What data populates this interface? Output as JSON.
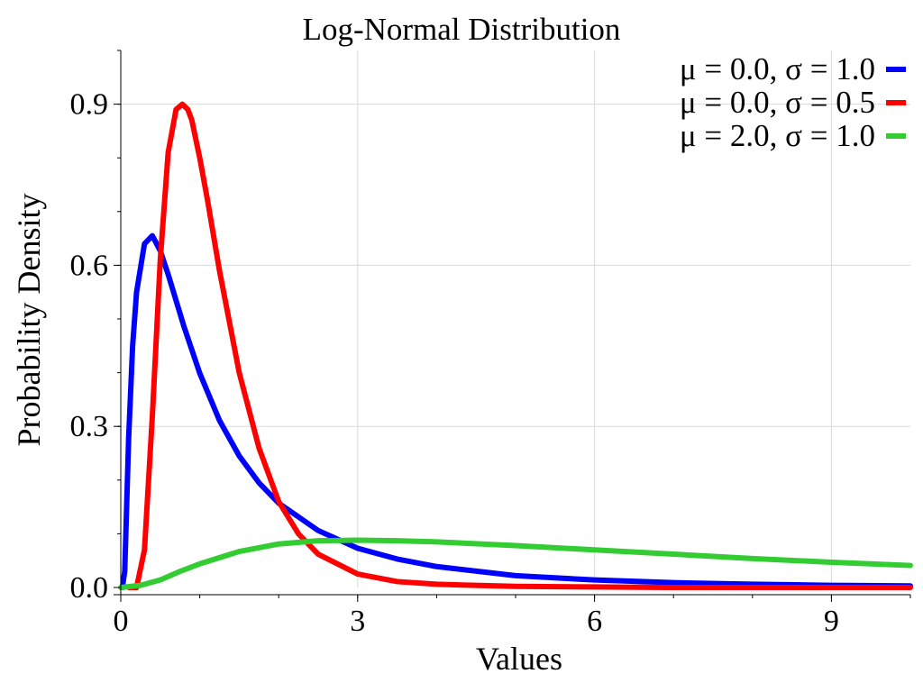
{
  "chart_data": {
    "type": "line",
    "title": "Log-Normal Distribution",
    "xlabel": "Values",
    "ylabel": "Probability Density",
    "xlim": [
      0,
      10
    ],
    "ylim": [
      0,
      1.0
    ],
    "xticks": [
      0,
      3,
      6,
      9
    ],
    "xtick_labels": [
      "0",
      "3",
      "6",
      "9"
    ],
    "yticks": [
      0.0,
      0.3,
      0.6,
      0.9
    ],
    "ytick_labels": [
      "0.0",
      "0.3",
      "0.6",
      "0.9"
    ],
    "grid": true,
    "legend_position": "top-right",
    "series": [
      {
        "name": "μ = 0.0, σ = 1.0",
        "color": "#0000ff",
        "x": [
          0.02,
          0.05,
          0.1,
          0.15,
          0.2,
          0.3,
          0.4,
          0.5,
          0.6,
          0.8,
          1.0,
          1.25,
          1.5,
          1.75,
          2.0,
          2.5,
          3.0,
          3.5,
          4.0,
          5.0,
          6.0,
          7.0,
          8.0,
          9.0,
          10.0
        ],
        "y": [
          0.0,
          0.03,
          0.28,
          0.45,
          0.55,
          0.64,
          0.655,
          0.627,
          0.583,
          0.486,
          0.399,
          0.311,
          0.245,
          0.195,
          0.157,
          0.106,
          0.073,
          0.053,
          0.039,
          0.022,
          0.014,
          0.009,
          0.006,
          0.004,
          0.003
        ]
      },
      {
        "name": "μ = 0.0, σ = 0.5",
        "color": "#ff0000",
        "x": [
          0.1,
          0.2,
          0.3,
          0.4,
          0.5,
          0.6,
          0.7,
          0.78,
          0.85,
          0.9,
          1.0,
          1.1,
          1.25,
          1.5,
          1.75,
          2.0,
          2.25,
          2.5,
          3.0,
          3.5,
          4.0,
          5.0,
          6.0,
          7.0,
          8.0,
          10.0
        ],
        "y": [
          0.0,
          0.0,
          0.07,
          0.32,
          0.61,
          0.81,
          0.89,
          0.9,
          0.89,
          0.87,
          0.8,
          0.72,
          0.59,
          0.4,
          0.26,
          0.16,
          0.1,
          0.062,
          0.025,
          0.011,
          0.006,
          0.002,
          0.001,
          0.0,
          0.0,
          0.0
        ]
      },
      {
        "name": "μ = 2.0, σ = 1.0",
        "color": "#33cc33",
        "x": [
          0.0,
          0.25,
          0.5,
          0.75,
          1.0,
          1.5,
          2.0,
          2.5,
          3.0,
          3.5,
          4.0,
          5.0,
          6.0,
          7.0,
          8.0,
          9.0,
          10.0
        ],
        "y": [
          0.0,
          0.004,
          0.014,
          0.03,
          0.044,
          0.067,
          0.081,
          0.087,
          0.088,
          0.087,
          0.085,
          0.078,
          0.07,
          0.062,
          0.054,
          0.047,
          0.041
        ]
      }
    ]
  }
}
